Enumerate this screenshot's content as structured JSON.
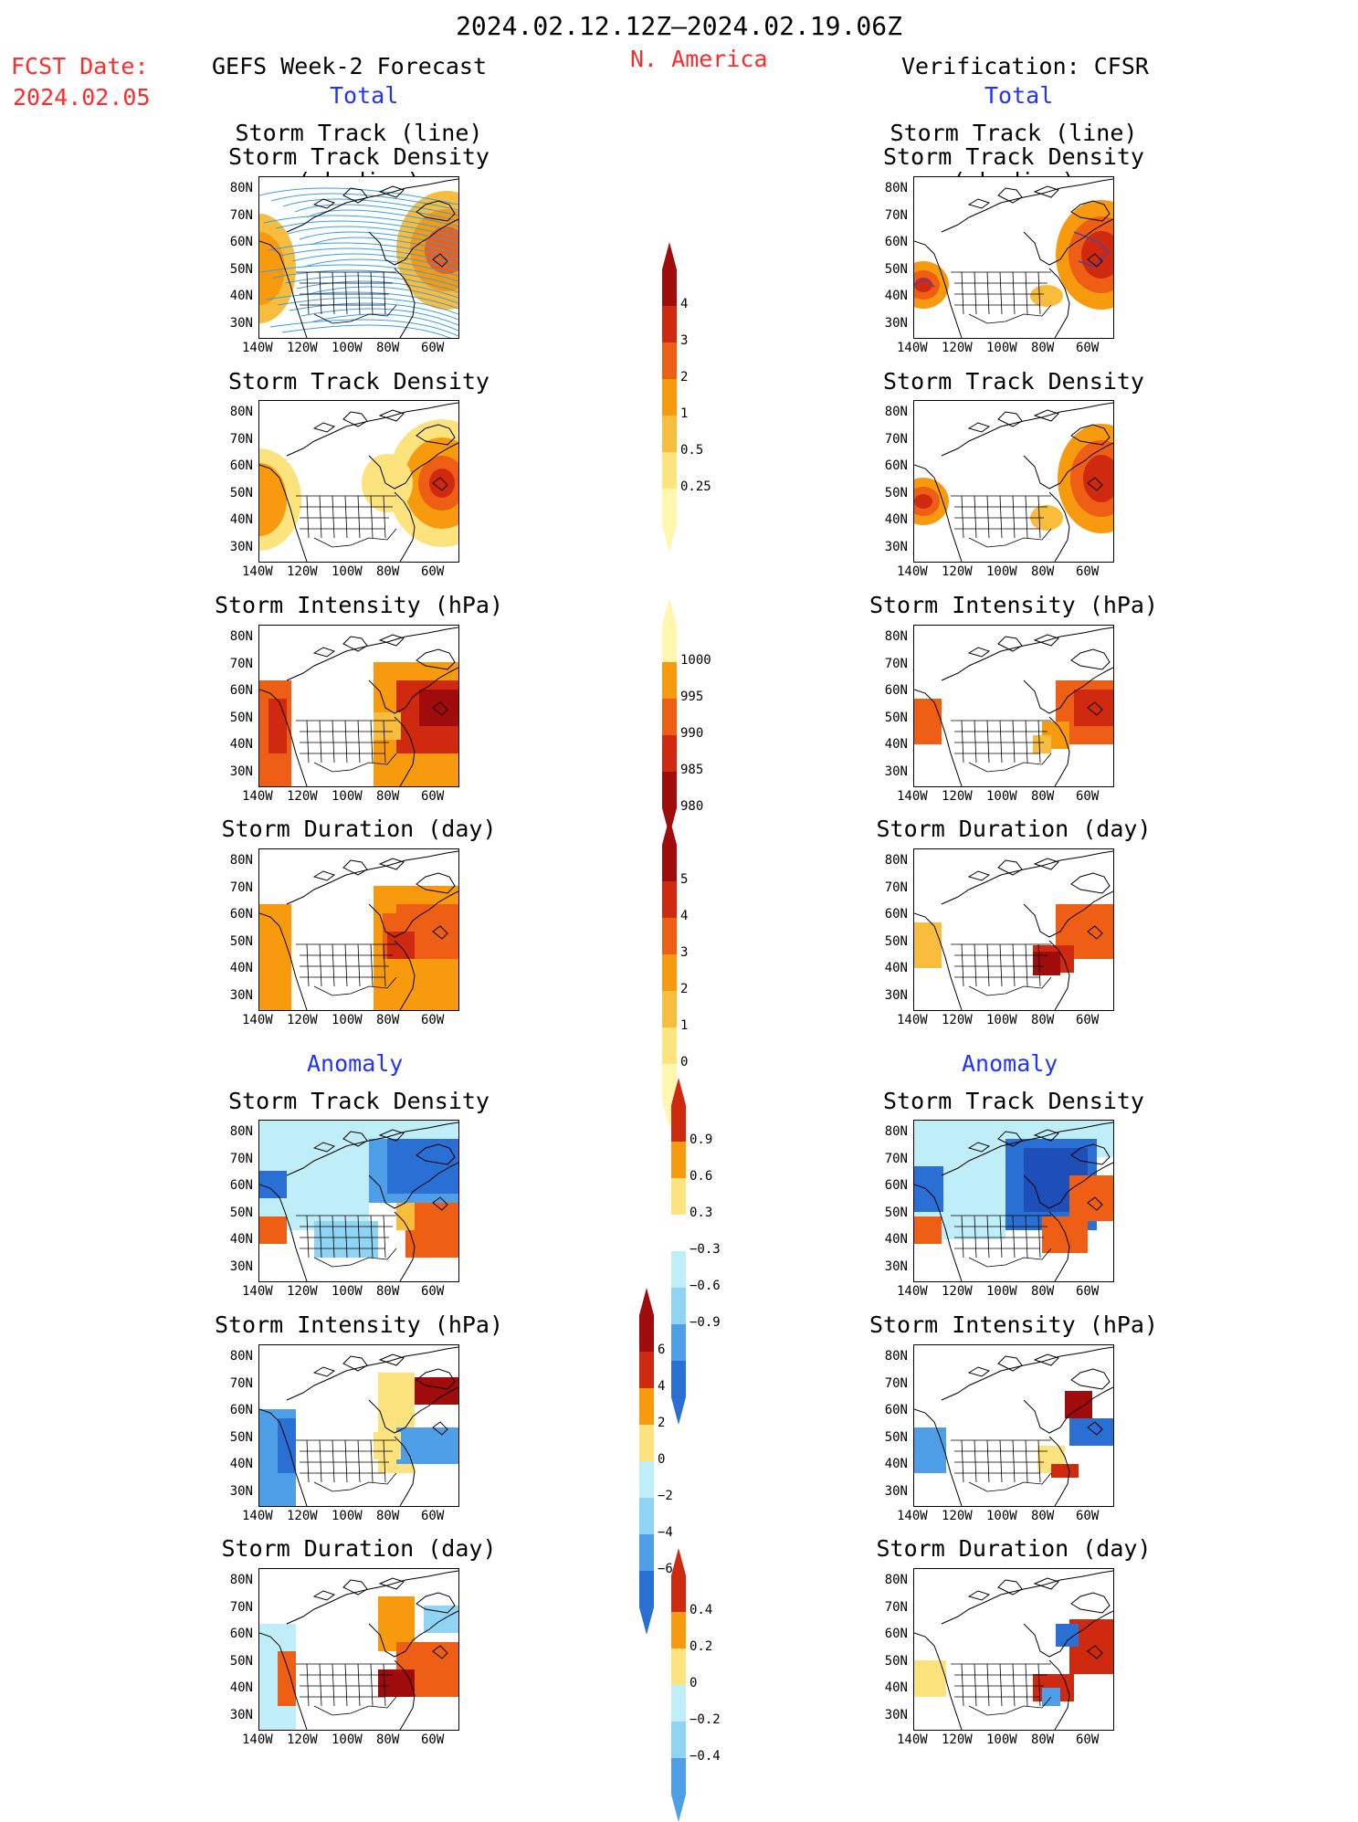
{
  "header": {
    "period": "2024.02.12.12Z–2024.02.19.06Z",
    "fcst_date_label": "FCST Date:",
    "fcst_date": "2024.02.05",
    "forecast_title": "GEFS Week-2 Forecast",
    "region": "N. America",
    "verification_title": "Verification: CFSR",
    "total_left": "Total",
    "total_right": "Total",
    "anomaly_left": "Anomaly",
    "anomaly_right": "Anomaly"
  },
  "panels": {
    "track_line": "Storm Track (line)",
    "track_shading": "Storm Track Density (shading)",
    "density": "Storm Track Density",
    "intensity": "Storm Intensity (hPa)",
    "duration": "Storm Duration (day)"
  },
  "axes": {
    "lat": [
      "80N",
      "70N",
      "60N",
      "50N",
      "40N",
      "30N"
    ],
    "lon": [
      "140W",
      "120W",
      "100W",
      "80W",
      "60W"
    ]
  },
  "colorbars": {
    "density": [
      "4",
      "3",
      "2",
      "1",
      "0.5",
      "0.25"
    ],
    "intensity": [
      "1000",
      "995",
      "990",
      "985",
      "980"
    ],
    "duration": [
      "5",
      "4",
      "3",
      "2",
      "1",
      "0"
    ],
    "density_anom": [
      "0.9",
      "0.6",
      "0.3",
      "−0.3",
      "−0.6",
      "−0.9"
    ],
    "intensity_anom": [
      "6",
      "4",
      "2",
      "0",
      "−2",
      "−4",
      "−6"
    ],
    "duration_anom": [
      "0.4",
      "0.2",
      "0",
      "−0.2",
      "−0.4"
    ]
  },
  "colors": {
    "title_red": "#ff2a2a",
    "label_blue": "#2233ff",
    "warm": [
      "#fff6b0",
      "#fde37d",
      "#f8bd3c",
      "#f79a0e",
      "#ee5e14",
      "#cf2a10",
      "#a00c0c"
    ],
    "cool": [
      "#bfeef9",
      "#8fd4f2",
      "#4f9fe8",
      "#2a6fd4",
      "#1e4fb8"
    ]
  }
}
